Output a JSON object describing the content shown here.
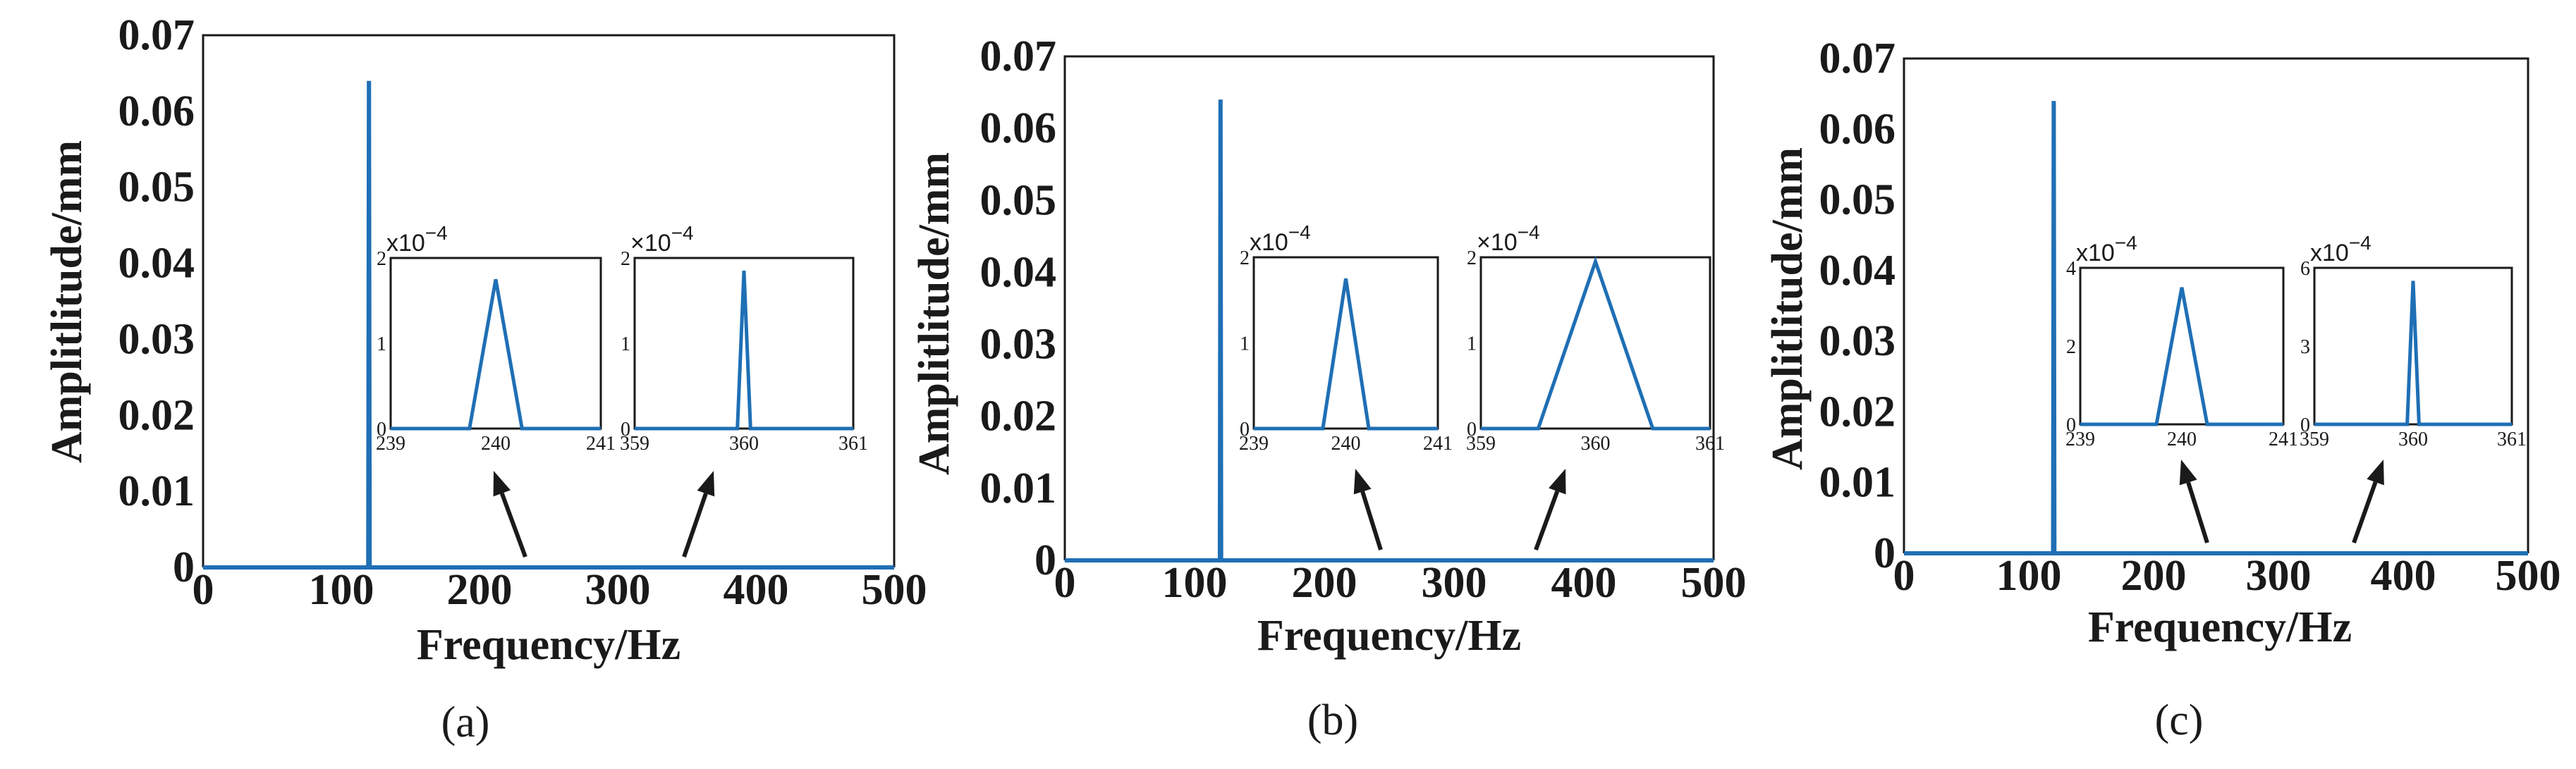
{
  "chart_data": [
    {
      "type": "line",
      "panel_label": "(a)",
      "xlabel": "Frequency/Hz",
      "ylabel": "Amplitlitude/mm",
      "xlim": [
        0,
        500
      ],
      "ylim": [
        0,
        0.07
      ],
      "x_ticks": [
        "0",
        "100",
        "200",
        "300",
        "400",
        "500"
      ],
      "y_ticks": [
        "0",
        "0.01",
        "0.02",
        "0.03",
        "0.04",
        "0.05",
        "0.06",
        "0.07"
      ],
      "color": "#1f6fb5",
      "series": [
        {
          "x": [
            0,
            119.5,
            120,
            120.5,
            500
          ],
          "y": [
            0,
            0,
            0.064,
            0,
            0
          ]
        }
      ],
      "insets": [
        {
          "exponent_label": "x10",
          "exponent": "−4",
          "xlim": [
            239,
            241
          ],
          "ylim": [
            0,
            2
          ],
          "x_ticks": [
            "239",
            "240",
            "241"
          ],
          "y_ticks": [
            "0",
            "1",
            "2"
          ],
          "series": {
            "x": [
              239,
              239.75,
              240,
              240.25,
              241
            ],
            "y": [
              0,
              0,
              1.75,
              0,
              0
            ]
          }
        },
        {
          "exponent_label": "×10",
          "exponent": "−4",
          "xlim": [
            359,
            361
          ],
          "ylim": [
            0,
            2
          ],
          "x_ticks": [
            "359",
            "360",
            "361"
          ],
          "y_ticks": [
            "0",
            "1",
            "2"
          ],
          "series": {
            "x": [
              359,
              359.94,
              360,
              360.06,
              361
            ],
            "y": [
              0,
              0,
              1.85,
              0,
              0
            ]
          }
        }
      ],
      "arrows_point_to_x": [
        240,
        360
      ]
    },
    {
      "type": "line",
      "panel_label": "(b)",
      "xlabel": "Frequency/Hz",
      "ylabel": "Amplitlitude/mm",
      "xlim": [
        0,
        500
      ],
      "ylim": [
        0,
        0.07
      ],
      "x_ticks": [
        "0",
        "100",
        "200",
        "300",
        "400",
        "500"
      ],
      "y_ticks": [
        "0",
        "0.01",
        "0.02",
        "0.03",
        "0.04",
        "0.05",
        "0.06",
        "0.07"
      ],
      "color": "#1f6fb5",
      "series": [
        {
          "x": [
            0,
            119.5,
            120,
            120.5,
            500
          ],
          "y": [
            0,
            0,
            0.064,
            0,
            0
          ]
        }
      ],
      "insets": [
        {
          "exponent_label": "x10",
          "exponent": "−4",
          "xlim": [
            239,
            241
          ],
          "ylim": [
            0,
            2
          ],
          "x_ticks": [
            "239",
            "240",
            "241"
          ],
          "y_ticks": [
            "0",
            "1",
            "2"
          ],
          "series": {
            "x": [
              239,
              239.75,
              240,
              240.25,
              241
            ],
            "y": [
              0,
              0,
              1.75,
              0,
              0
            ]
          }
        },
        {
          "exponent_label": "×10",
          "exponent": "−4",
          "xlim": [
            359,
            361
          ],
          "ylim": [
            0,
            2
          ],
          "x_ticks": [
            "359",
            "360",
            "361"
          ],
          "y_ticks": [
            "0",
            "1",
            "2"
          ],
          "series": {
            "x": [
              359,
              359.5,
              360,
              360.5,
              361
            ],
            "y": [
              0,
              0,
              1.95,
              0,
              0
            ]
          }
        }
      ],
      "arrows_point_to_x": [
        240,
        360
      ]
    },
    {
      "type": "line",
      "panel_label": "(c)",
      "xlabel": "Frequency/Hz",
      "ylabel": "Amplitlitude/mm",
      "xlim": [
        0,
        500
      ],
      "ylim": [
        0,
        0.07
      ],
      "x_ticks": [
        "0",
        "100",
        "200",
        "300",
        "400",
        "500"
      ],
      "y_ticks": [
        "0",
        "0.01",
        "0.02",
        "0.03",
        "0.04",
        "0.05",
        "0.06",
        "0.07"
      ],
      "color": "#1f6fb5",
      "series": [
        {
          "x": [
            0,
            119.5,
            120,
            120.5,
            500
          ],
          "y": [
            0,
            0,
            0.064,
            0,
            0
          ]
        }
      ],
      "insets": [
        {
          "exponent_label": "x10",
          "exponent": "−4",
          "xlim": [
            239,
            241
          ],
          "ylim": [
            0,
            4
          ],
          "x_ticks": [
            "239",
            "240",
            "241"
          ],
          "y_ticks": [
            "0",
            "2",
            "4"
          ],
          "series": {
            "x": [
              239,
              239.75,
              240,
              240.25,
              241
            ],
            "y": [
              0,
              0,
              3.5,
              0,
              0
            ]
          }
        },
        {
          "exponent_label": "x10",
          "exponent": "−4",
          "xlim": [
            359,
            361
          ],
          "ylim": [
            0,
            6
          ],
          "x_ticks": [
            "359",
            "360",
            "361"
          ],
          "y_ticks": [
            "0",
            "3",
            "6"
          ],
          "series": {
            "x": [
              359,
              359.94,
              360,
              360.06,
              361
            ],
            "y": [
              0,
              0,
              5.5,
              0,
              0
            ]
          }
        }
      ],
      "arrows_point_to_x": [
        240,
        360
      ]
    }
  ]
}
